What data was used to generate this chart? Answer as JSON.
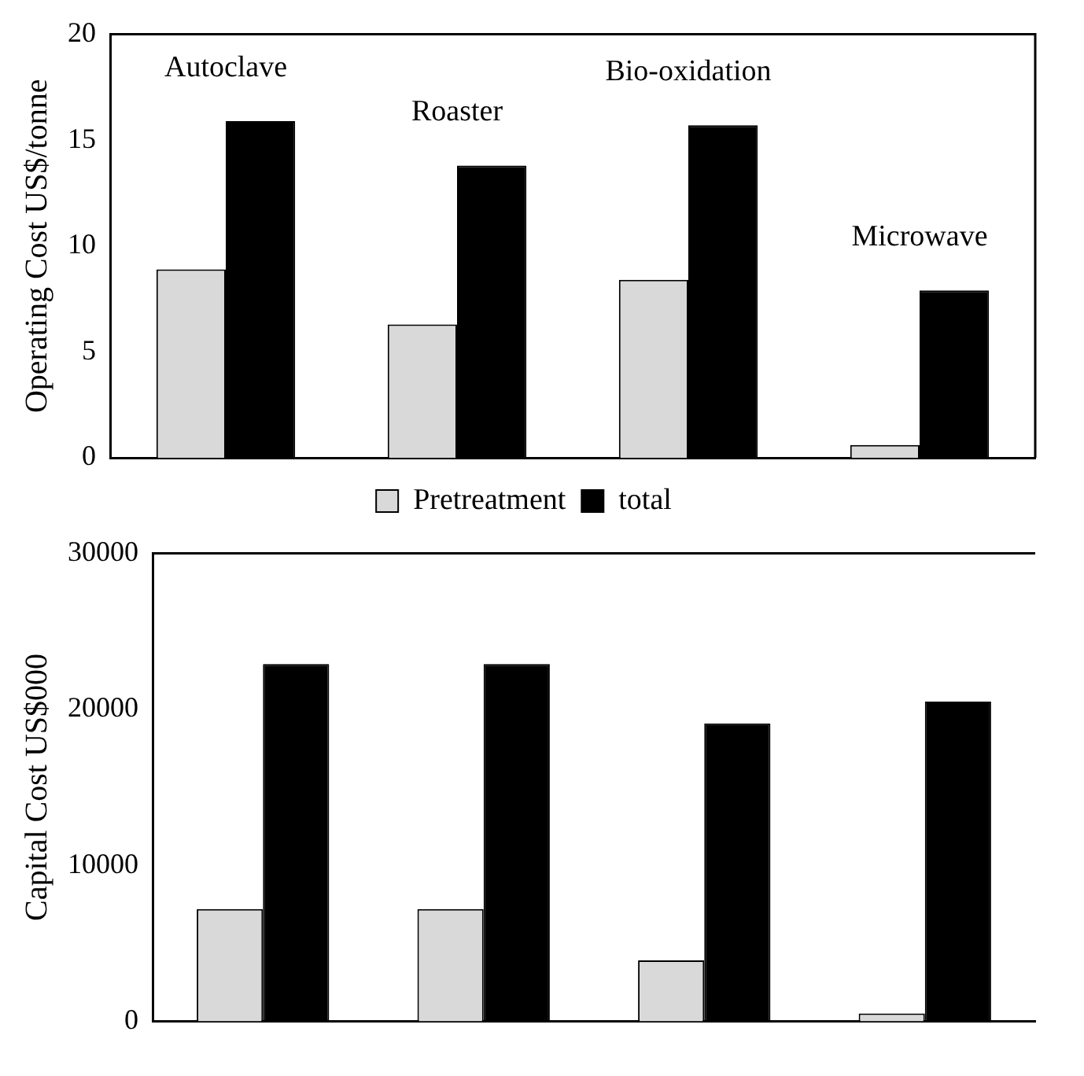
{
  "chart_data": [
    {
      "type": "bar",
      "ylabel": "Operating Cost US$/tonne",
      "categories": [
        "Autoclave",
        "Roaster",
        "Bio-oxidation",
        "Microwave"
      ],
      "series": [
        {
          "name": "Pretreatment",
          "color": "#d9d9d9",
          "values": [
            8.9,
            6.3,
            8.4,
            0.6
          ]
        },
        {
          "name": "total",
          "color": "#000000",
          "values": [
            15.9,
            13.8,
            15.7,
            7.9
          ]
        }
      ],
      "ylim": [
        0,
        20
      ],
      "yticks": [
        0,
        5,
        10,
        15,
        20
      ],
      "grid": false,
      "legend": "bottom",
      "tick_labels": "y"
    },
    {
      "type": "bar",
      "ylabel": "Capital Cost US$000",
      "categories": [
        null,
        null,
        null,
        null
      ],
      "series": [
        {
          "color": "#d9d9d9",
          "values": [
            7200,
            7200,
            3900,
            500
          ]
        },
        {
          "color": "#000000",
          "values": [
            22900,
            22900,
            19100,
            20500
          ]
        }
      ],
      "ylim": [
        0,
        30000
      ],
      "yticks": [
        0,
        10000,
        20000,
        30000
      ],
      "grid": false,
      "legend": false,
      "tick_labels": "y"
    }
  ]
}
